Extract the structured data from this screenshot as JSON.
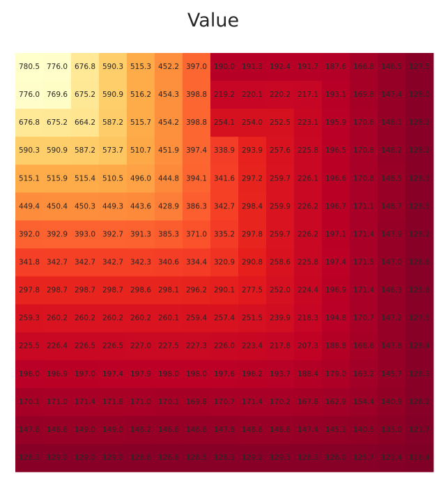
{
  "chart_data": {
    "type": "heatmap",
    "title": "Value",
    "xlabel": "",
    "ylabel": "",
    "colormap": "YlOrRd",
    "vmin": 116.4,
    "vmax": 780.5,
    "grid": false,
    "colors": {
      "stops": [
        "#800026",
        "#bd0026",
        "#e31a1c",
        "#fc4e2a",
        "#fd8d3c",
        "#feb24c",
        "#fed976",
        "#ffeda0",
        "#ffffcc"
      ]
    },
    "values": [
      [
        780.5,
        776.0,
        676.8,
        590.3,
        515.3,
        452.2,
        397.0,
        190.0,
        191.3,
        192.4,
        191.7,
        187.6,
        166.8,
        146.5,
        127.5
      ],
      [
        776.0,
        769.6,
        675.2,
        590.9,
        516.2,
        454.3,
        398.8,
        219.2,
        220.1,
        220.2,
        217.1,
        193.1,
        169.8,
        147.4,
        128.0
      ],
      [
        676.8,
        675.2,
        664.2,
        587.2,
        515.7,
        454.2,
        398.8,
        254.1,
        254.0,
        252.5,
        223.1,
        195.9,
        170.6,
        148.1,
        128.2
      ],
      [
        590.3,
        590.9,
        587.2,
        573.7,
        510.7,
        451.9,
        397.4,
        338.9,
        293.9,
        257.6,
        225.8,
        196.5,
        170.8,
        148.2,
        128.2
      ],
      [
        515.1,
        515.9,
        515.4,
        510.5,
        496.0,
        444.8,
        394.1,
        341.6,
        297.2,
        259.7,
        226.1,
        196.6,
        170.8,
        148.5,
        128.3
      ],
      [
        449.4,
        450.4,
        450.3,
        449.3,
        443.6,
        428.9,
        386.3,
        342.7,
        298.4,
        259.9,
        226.2,
        196.7,
        171.1,
        148.7,
        128.5
      ],
      [
        392.0,
        392.9,
        393.0,
        392.7,
        391.3,
        385.3,
        371.0,
        335.2,
        297.8,
        259.7,
        226.2,
        197.1,
        171.4,
        147.9,
        128.2
      ],
      [
        341.8,
        342.7,
        342.7,
        342.7,
        342.3,
        340.6,
        334.4,
        320.9,
        290.8,
        258.6,
        225.8,
        197.4,
        171.5,
        147.0,
        126.6
      ],
      [
        297.8,
        298.7,
        298.7,
        298.7,
        298.6,
        298.1,
        296.2,
        290.1,
        277.5,
        252.0,
        224.4,
        196.9,
        171.4,
        146.3,
        125.8
      ],
      [
        259.3,
        260.2,
        260.2,
        260.2,
        260.2,
        260.1,
        259.4,
        257.4,
        251.5,
        239.9,
        218.3,
        194.8,
        170.7,
        147.2,
        127.5
      ],
      [
        225.5,
        226.4,
        226.5,
        226.5,
        227.0,
        227.5,
        227.3,
        226.0,
        223.4,
        217.8,
        207.3,
        188.8,
        168.6,
        147.8,
        128.4
      ],
      [
        196.0,
        196.9,
        197.0,
        197.4,
        197.9,
        198.0,
        198.0,
        197.6,
        196.2,
        193.7,
        188.4,
        179.0,
        163.2,
        145.7,
        128.3
      ],
      [
        170.1,
        171.0,
        171.4,
        171.8,
        171.0,
        170.1,
        169.8,
        170.7,
        171.4,
        170.2,
        167.8,
        162.9,
        154.4,
        140.9,
        126.2
      ],
      [
        147.6,
        148.6,
        149.0,
        149.0,
        148.2,
        146.6,
        146.6,
        147.8,
        148.6,
        148.6,
        147.4,
        145.1,
        140.5,
        133.0,
        121.7
      ],
      [
        128.3,
        129.0,
        129.0,
        129.0,
        128.6,
        126.8,
        126.5,
        128.1,
        129.2,
        129.3,
        128.3,
        126.0,
        125.7,
        121.4,
        116.4
      ]
    ]
  }
}
